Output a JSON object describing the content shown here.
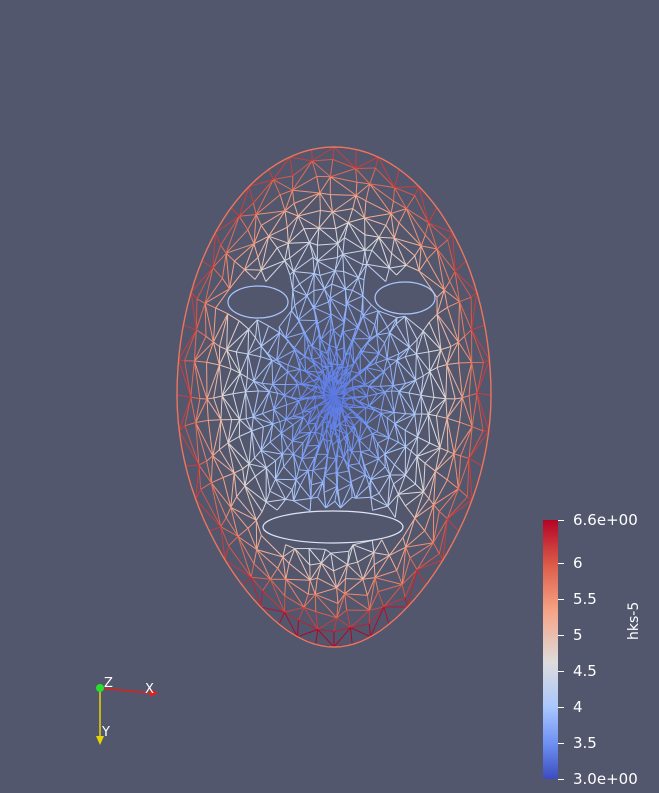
{
  "scene": {
    "background": "#52576e",
    "object": "face-mesh-wireframe",
    "scalar_field": "hks-5"
  },
  "colorbar": {
    "title": "hks-5",
    "max_label": "6.6e+00",
    "min_label": "3.0e+00",
    "min": 3.0,
    "max": 6.6,
    "ticks": [
      {
        "value": 6.6,
        "label": "6.6e+00"
      },
      {
        "value": 6.0,
        "label": "6"
      },
      {
        "value": 5.5,
        "label": "5.5"
      },
      {
        "value": 5.0,
        "label": "5"
      },
      {
        "value": 4.5,
        "label": "4.5"
      },
      {
        "value": 4.0,
        "label": "4"
      },
      {
        "value": 3.5,
        "label": "3.5"
      },
      {
        "value": 3.0,
        "label": "3.0e+00"
      }
    ],
    "colormap": [
      "#3b4cc0",
      "#6f92f3",
      "#aac7fd",
      "#dddcdc",
      "#f6a385",
      "#dd5f4b",
      "#b40426"
    ]
  },
  "axes": {
    "x_label": "X",
    "y_label": "Y",
    "z_label": "Z",
    "x_color": "#e0201a",
    "y_color": "#e8d400",
    "z_color": "#26e02e"
  }
}
